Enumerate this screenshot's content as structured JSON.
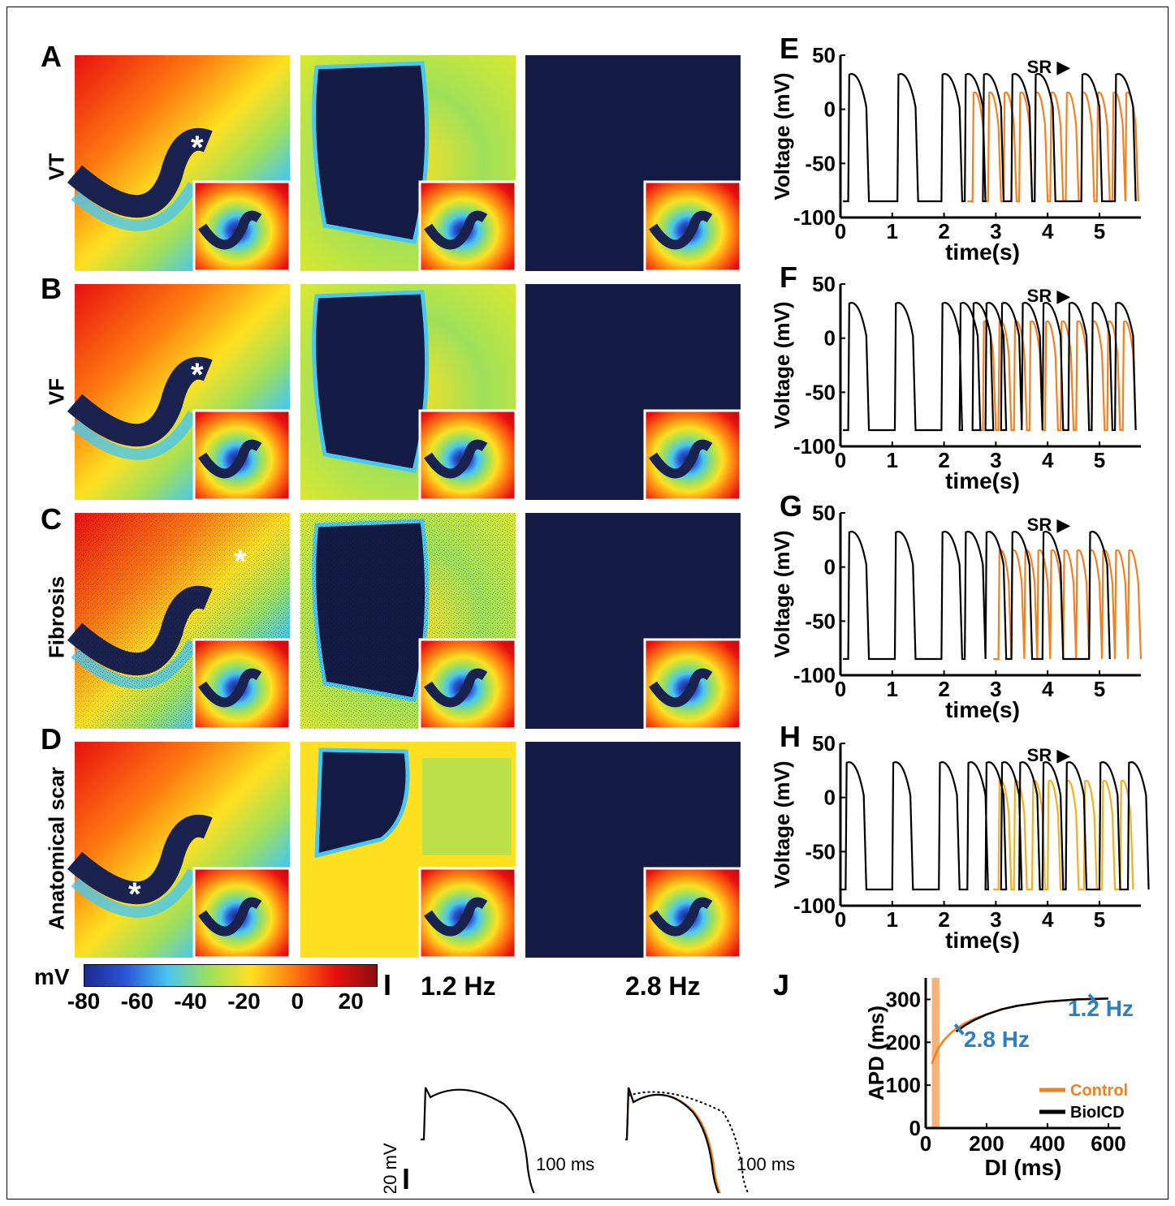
{
  "rows": [
    {
      "panel": "A",
      "label": "VT"
    },
    {
      "panel": "B",
      "label": "VF"
    },
    {
      "panel": "C",
      "label": "Fibrosis"
    },
    {
      "panel": "D",
      "label": "Anatomical scar"
    }
  ],
  "asterisk": "*",
  "colorbar": {
    "unit": "mV",
    "ticks": [
      "-80",
      "-60",
      "-40",
      "-20",
      "0",
      "20"
    ],
    "range": [
      -80,
      30
    ],
    "colors": [
      "#1e2a8c",
      "#2b55d8",
      "#48c7f0",
      "#9ee05a",
      "#ffe020",
      "#ff7a10",
      "#e81010",
      "#8a1010"
    ]
  },
  "voltage_panels": [
    {
      "panel": "E",
      "sr_label": "SR ▶"
    },
    {
      "panel": "F",
      "sr_label": "SR ▶"
    },
    {
      "panel": "G",
      "sr_label": "SR ▶"
    },
    {
      "panel": "H",
      "sr_label": "SR ▶"
    }
  ],
  "voltage_axes": {
    "ylabel": "Voltage (mV)",
    "xlabel": "time(s)",
    "yticks": [
      "50",
      "0",
      "-50",
      "-100"
    ],
    "xticks": [
      "0",
      "1",
      "2",
      "3",
      "4",
      "5"
    ]
  },
  "panel_I": {
    "label": "I",
    "freq_left": "1.2 Hz",
    "freq_right": "2.8 Hz",
    "scale_v": "20 mV",
    "scale_t_left": "100 ms",
    "scale_t_right": "100 ms"
  },
  "panel_J": {
    "label": "J",
    "ylabel": "APD (ms)",
    "xlabel": "DI (ms)",
    "yticks": [
      "0",
      "100",
      "200",
      "300"
    ],
    "xticks": [
      "0",
      "200",
      "400",
      "600"
    ],
    "annotation_low": "2.8 Hz",
    "annotation_high": "1.2 Hz",
    "legend": [
      "Control",
      "BioICD"
    ]
  },
  "chart_data": [
    {
      "type": "line",
      "panel": "E",
      "xlabel": "time(s)",
      "ylabel": "Voltage (mV)",
      "xlim": [
        0,
        5.8
      ],
      "ylim": [
        -100,
        50
      ],
      "series": [
        {
          "color": "#000000",
          "beats": [
            0.15,
            1.1,
            1.95,
            2.4,
            2.75,
            3.3,
            3.75,
            4.65,
            5.3
          ]
        },
        {
          "color": "#f08020",
          "beats": [
            2.55,
            2.85,
            3.15,
            3.45,
            3.75,
            4.05,
            4.35,
            4.65,
            4.95,
            5.25,
            5.5
          ]
        }
      ]
    },
    {
      "type": "line",
      "panel": "F",
      "xlabel": "time(s)",
      "ylabel": "Voltage (mV)",
      "xlim": [
        0,
        5.8
      ],
      "ylim": [
        -100,
        50
      ],
      "series": [
        {
          "color": "#000000",
          "beats": [
            0.15,
            1.05,
            1.95,
            2.3,
            2.55,
            2.8,
            3.1,
            3.5,
            3.9,
            4.4,
            4.85,
            5.3
          ]
        },
        {
          "color": "#f08020",
          "beats": [
            2.75,
            3.05,
            3.35,
            3.65,
            3.95,
            4.25,
            4.55,
            4.85,
            5.15,
            5.45
          ]
        }
      ]
    },
    {
      "type": "line",
      "panel": "G",
      "xlabel": "time(s)",
      "ylabel": "Voltage (mV)",
      "xlim": [
        0,
        5.8
      ],
      "ylim": [
        -100,
        50
      ],
      "series": [
        {
          "color": "#000000",
          "beats": [
            0.15,
            1.05,
            1.95,
            2.4,
            2.8,
            3.3,
            3.9,
            4.8
          ]
        },
        {
          "color": "#f08020",
          "beats": [
            3.05,
            3.3,
            3.55,
            3.8,
            4.05,
            4.3,
            4.55,
            4.8,
            5.05,
            5.3,
            5.55
          ]
        }
      ]
    },
    {
      "type": "line",
      "panel": "H",
      "xlabel": "time(s)",
      "ylabel": "Voltage (mV)",
      "xlim": [
        0,
        5.8
      ],
      "ylim": [
        -100,
        50
      ],
      "series": [
        {
          "color": "#000000",
          "beats": [
            0.1,
            1.0,
            1.9,
            2.45,
            2.8,
            3.1,
            3.45,
            3.9,
            4.35,
            5.0,
            5.55
          ]
        },
        {
          "color": "#f0b020",
          "beats": [
            3.05,
            3.35,
            3.7,
            4.0,
            4.35,
            4.7,
            5.05,
            5.4
          ]
        }
      ]
    },
    {
      "type": "line",
      "panel": "J",
      "xlabel": "DI (ms)",
      "ylabel": "APD (ms)",
      "xlim": [
        0,
        640
      ],
      "ylim": [
        0,
        350
      ],
      "series": [
        {
          "name": "Control",
          "color": "#f08020",
          "x": [
            20,
            40,
            60,
            80,
            100,
            130,
            160,
            200,
            250,
            300,
            400,
            500,
            600
          ],
          "y": [
            150,
            185,
            205,
            220,
            232,
            245,
            255,
            265,
            277,
            285,
            295,
            300,
            302
          ]
        },
        {
          "name": "BioICD",
          "color": "#000000",
          "x": [
            100,
            130,
            160,
            200,
            250,
            300,
            400,
            500,
            600
          ],
          "y": [
            225,
            240,
            252,
            265,
            277,
            285,
            295,
            300,
            302
          ]
        }
      ],
      "markers": [
        {
          "x": 110,
          "y": 230
        },
        {
          "x": 550,
          "y": 300
        }
      ]
    }
  ]
}
